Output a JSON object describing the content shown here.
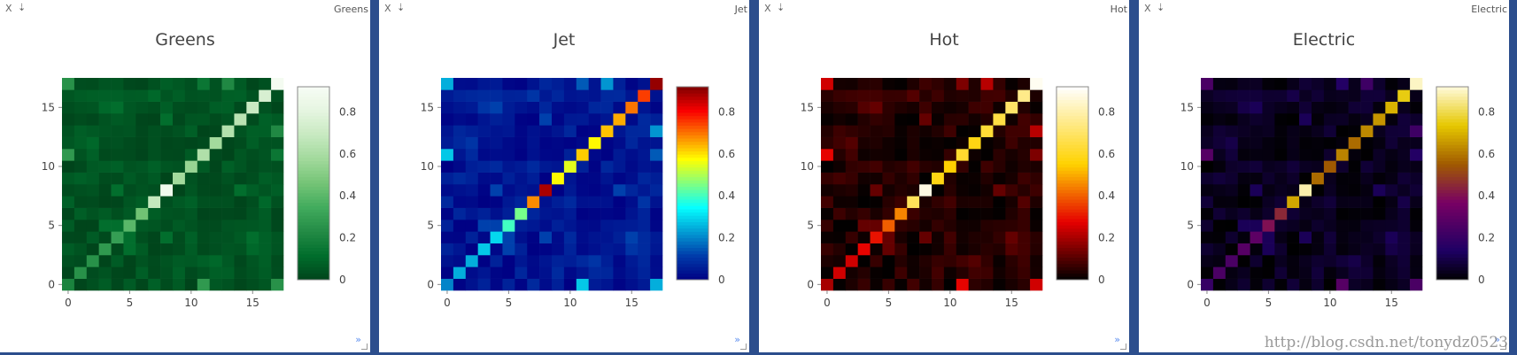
{
  "panels": [
    {
      "tag": "Greens",
      "title": "Greens",
      "colorscale": "Greens"
    },
    {
      "tag": "Jet",
      "title": "Jet",
      "colorscale": "Jet"
    },
    {
      "tag": "Hot",
      "title": "Hot",
      "colorscale": "Hot"
    },
    {
      "tag": "Electric",
      "title": "Electric",
      "colorscale": "Electric"
    }
  ],
  "close_label": "X",
  "pin_label": "⇣",
  "more_label": "»",
  "watermark": "http://blog.csdn.net/tonydz0523",
  "chart_data": {
    "type": "heatmap",
    "size": 18,
    "diagonal": [
      0.2,
      0.25,
      0.25,
      0.28,
      0.3,
      0.4,
      0.45,
      0.68,
      0.88,
      0.58,
      0.55,
      0.62,
      0.58,
      0.63,
      0.65,
      0.7,
      0.75,
      0.9
    ],
    "xticks": [
      0,
      5,
      10,
      15
    ],
    "yticks": [
      0,
      5,
      10,
      15
    ],
    "zlim": [
      0,
      0.92
    ],
    "colorbar_ticks": [
      0,
      0.2,
      0.4,
      0.6,
      0.8
    ],
    "background_range": [
      0.0,
      0.08
    ],
    "off_diagonal_highlights": [
      {
        "x": 11,
        "y": 0,
        "value": 0.28
      },
      {
        "x": 0,
        "y": 11,
        "value": 0.28
      },
      {
        "x": 17,
        "y": 0,
        "value": 0.25
      },
      {
        "x": 0,
        "y": 17,
        "value": 0.25
      },
      {
        "x": 17,
        "y": 13,
        "value": 0.22
      },
      {
        "x": 13,
        "y": 17,
        "value": 0.22
      },
      {
        "x": 17,
        "y": 11,
        "value": 0.15
      },
      {
        "x": 11,
        "y": 17,
        "value": 0.15
      },
      {
        "x": 5,
        "y": 3,
        "value": 0.12
      },
      {
        "x": 3,
        "y": 5,
        "value": 0.12
      },
      {
        "x": 4,
        "y": 5,
        "value": 0.12
      },
      {
        "x": 5,
        "y": 4,
        "value": 0.12
      },
      {
        "x": 8,
        "y": 4,
        "value": 0.12
      },
      {
        "x": 4,
        "y": 8,
        "value": 0.12
      },
      {
        "x": 15,
        "y": 4,
        "value": 0.12
      },
      {
        "x": 4,
        "y": 15,
        "value": 0.12
      },
      {
        "x": 8,
        "y": 14,
        "value": 0.12
      },
      {
        "x": 14,
        "y": 8,
        "value": 0.12
      },
      {
        "x": 3,
        "y": 15,
        "value": 0.1
      },
      {
        "x": 15,
        "y": 3,
        "value": 0.1
      },
      {
        "x": 7,
        "y": 16,
        "value": 0.1
      },
      {
        "x": 16,
        "y": 7,
        "value": 0.1
      },
      {
        "x": 2,
        "y": 12,
        "value": 0.1
      },
      {
        "x": 12,
        "y": 2,
        "value": 0.1
      }
    ]
  }
}
